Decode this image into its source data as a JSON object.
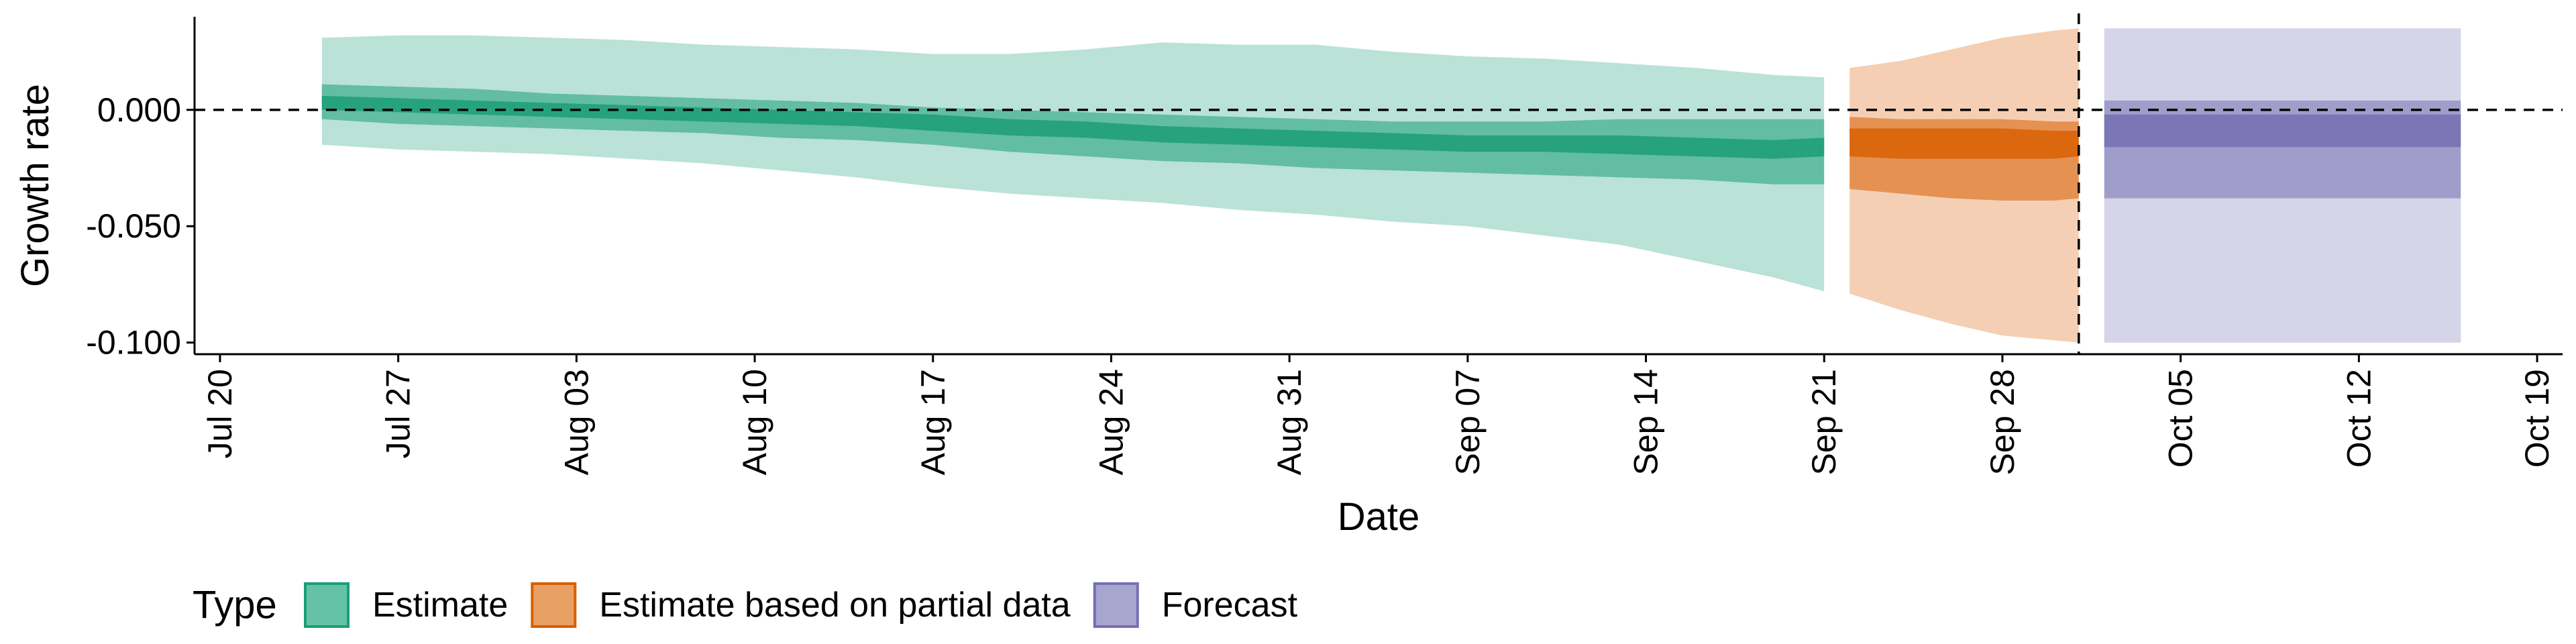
{
  "chart_data": {
    "type": "area",
    "title": "",
    "xlabel": "Date",
    "ylabel": "Growth rate",
    "x_range": [
      "2020-07-19",
      "2020-10-20"
    ],
    "ylim": [
      -0.105,
      0.04
    ],
    "reference_hline": 0,
    "reference_vline": "2020-10-01",
    "y_ticks": [
      {
        "value": 0.0,
        "label": "0.000"
      },
      {
        "value": -0.05,
        "label": "-0.050"
      },
      {
        "value": -0.1,
        "label": "-0.100"
      }
    ],
    "x_ticks": [
      {
        "date": "2020-07-20",
        "label": "Jul 20"
      },
      {
        "date": "2020-07-27",
        "label": "Jul 27"
      },
      {
        "date": "2020-08-03",
        "label": "Aug 03"
      },
      {
        "date": "2020-08-10",
        "label": "Aug 10"
      },
      {
        "date": "2020-08-17",
        "label": "Aug 17"
      },
      {
        "date": "2020-08-24",
        "label": "Aug 24"
      },
      {
        "date": "2020-08-31",
        "label": "Aug 31"
      },
      {
        "date": "2020-09-07",
        "label": "Sep 07"
      },
      {
        "date": "2020-09-14",
        "label": "Sep 14"
      },
      {
        "date": "2020-09-21",
        "label": "Sep 21"
      },
      {
        "date": "2020-09-28",
        "label": "Sep 28"
      },
      {
        "date": "2020-10-05",
        "label": "Oct 05"
      },
      {
        "date": "2020-10-12",
        "label": "Oct 12"
      },
      {
        "date": "2020-10-19",
        "label": "Oct 19"
      }
    ],
    "grid": false,
    "legend_position": "bottom-left",
    "legend": {
      "title": "Type",
      "entries": [
        {
          "label": "Estimate",
          "fill": "#66C2A5",
          "border": "#1B9E77"
        },
        {
          "label": "Estimate based on partial data",
          "fill": "#E8A065",
          "border": "#D95F02"
        },
        {
          "label": "Forecast",
          "fill": "#A8A6CF",
          "border": "#7570B3"
        }
      ]
    },
    "series": [
      {
        "type": "Estimate",
        "color": "#1B9E77",
        "x": [
          "2020-07-24",
          "2020-07-27",
          "2020-07-30",
          "2020-08-02",
          "2020-08-05",
          "2020-08-08",
          "2020-08-11",
          "2020-08-14",
          "2020-08-17",
          "2020-08-20",
          "2020-08-23",
          "2020-08-26",
          "2020-08-29",
          "2020-09-01",
          "2020-09-04",
          "2020-09-07",
          "2020-09-10",
          "2020-09-13",
          "2020-09-16",
          "2020-09-19",
          "2020-09-21"
        ],
        "lower90": [
          -0.015,
          -0.017,
          -0.018,
          -0.019,
          -0.021,
          -0.023,
          -0.026,
          -0.029,
          -0.033,
          -0.036,
          -0.038,
          -0.04,
          -0.043,
          -0.045,
          -0.048,
          -0.05,
          -0.054,
          -0.058,
          -0.065,
          -0.072,
          -0.078
        ],
        "upper90": [
          0.031,
          0.032,
          0.032,
          0.031,
          0.03,
          0.028,
          0.027,
          0.026,
          0.024,
          0.024,
          0.026,
          0.029,
          0.028,
          0.028,
          0.025,
          0.023,
          0.022,
          0.02,
          0.018,
          0.015,
          0.014
        ],
        "lower50": [
          -0.004,
          -0.006,
          -0.007,
          -0.008,
          -0.009,
          -0.01,
          -0.012,
          -0.013,
          -0.015,
          -0.018,
          -0.02,
          -0.022,
          -0.023,
          -0.025,
          -0.026,
          -0.027,
          -0.028,
          -0.029,
          -0.03,
          -0.032,
          -0.032
        ],
        "upper50": [
          0.011,
          0.01,
          0.009,
          0.007,
          0.006,
          0.005,
          0.004,
          0.003,
          0.001,
          0.0,
          -0.001,
          -0.002,
          -0.003,
          -0.004,
          -0.005,
          -0.005,
          -0.005,
          -0.004,
          -0.004,
          -0.004,
          -0.004
        ],
        "lower20": [
          0.0,
          -0.001,
          -0.002,
          -0.003,
          -0.004,
          -0.005,
          -0.006,
          -0.007,
          -0.009,
          -0.011,
          -0.012,
          -0.014,
          -0.015,
          -0.016,
          -0.017,
          -0.018,
          -0.018,
          -0.019,
          -0.02,
          -0.021,
          -0.02
        ],
        "upper20": [
          0.006,
          0.005,
          0.004,
          0.003,
          0.002,
          0.001,
          0.0,
          -0.001,
          -0.002,
          -0.004,
          -0.005,
          -0.007,
          -0.008,
          -0.009,
          -0.01,
          -0.011,
          -0.011,
          -0.011,
          -0.012,
          -0.013,
          -0.012
        ]
      },
      {
        "type": "Estimate based on partial data",
        "color": "#D95F02",
        "x": [
          "2020-09-22",
          "2020-09-24",
          "2020-09-26",
          "2020-09-28",
          "2020-09-30",
          "2020-10-01"
        ],
        "lower90": [
          -0.079,
          -0.086,
          -0.092,
          -0.097,
          -0.099,
          -0.1
        ],
        "upper90": [
          0.018,
          0.021,
          0.026,
          0.031,
          0.034,
          0.035
        ],
        "lower50": [
          -0.034,
          -0.036,
          -0.038,
          -0.039,
          -0.039,
          -0.038
        ],
        "upper50": [
          -0.003,
          -0.004,
          -0.004,
          -0.004,
          -0.005,
          -0.005
        ],
        "lower20": [
          -0.02,
          -0.021,
          -0.021,
          -0.021,
          -0.021,
          -0.02
        ],
        "upper20": [
          -0.008,
          -0.008,
          -0.008,
          -0.008,
          -0.009,
          -0.009
        ]
      },
      {
        "type": "Forecast",
        "color": "#7570B3",
        "x": [
          "2020-10-02",
          "2020-10-16"
        ],
        "lower90": [
          -0.1,
          -0.1
        ],
        "upper90": [
          0.035,
          0.035
        ],
        "lower50": [
          -0.038,
          -0.038
        ],
        "upper50": [
          0.004,
          0.004
        ],
        "lower20": [
          -0.016,
          -0.016
        ],
        "upper20": [
          -0.002,
          -0.002
        ]
      }
    ]
  }
}
